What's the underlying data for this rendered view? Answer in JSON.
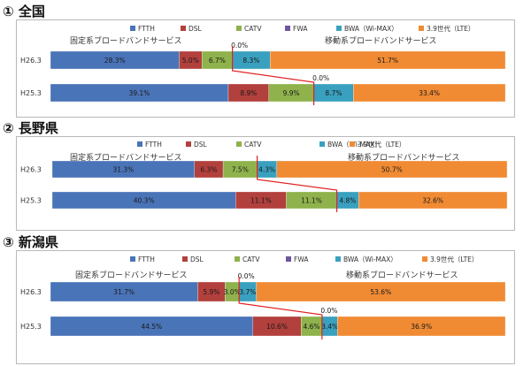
{
  "colors": {
    "FTTH": "#4a74b8",
    "DSL": "#b2403d",
    "CATV": "#8fb24c",
    "FWA": "#6e56a1",
    "BWA": "#3aa0bf",
    "LTE": "#f08b34",
    "connector": "#e02020"
  },
  "chart_data": [
    {
      "type": "bar",
      "orientation": "horizontal",
      "stacked": true,
      "percent": true,
      "title": "① 全国",
      "legend": [
        "FTTH",
        "DSL",
        "CATV",
        "FWA",
        "BWA（Wi-MAX）",
        "3.9世代（LTE）"
      ],
      "group_labels": {
        "fixed": "固定系ブロードバンドサービス",
        "mobile": "移動系ブロードバンドサービス"
      },
      "categories": [
        "H26.3",
        "H25.3"
      ],
      "series": [
        {
          "name": "FTTH",
          "values": [
            28.3,
            39.1
          ],
          "labels": [
            "28.3%",
            "39.1%"
          ]
        },
        {
          "name": "DSL",
          "values": [
            5.0,
            8.9
          ],
          "labels": [
            "5.0%",
            "8.9%"
          ]
        },
        {
          "name": "CATV",
          "values": [
            6.7,
            9.9
          ],
          "labels": [
            "6.7%",
            "9.9%"
          ]
        },
        {
          "name": "FWA",
          "values": [
            0.0,
            0.0
          ],
          "labels": [
            "0.0%",
            "0.0%"
          ]
        },
        {
          "name": "BWA（Wi-MAX）",
          "values": [
            8.3,
            8.7
          ],
          "labels": [
            "8.3%",
            "8.7%"
          ]
        },
        {
          "name": "3.9世代（LTE）",
          "values": [
            51.7,
            33.4
          ],
          "labels": [
            "51.7%",
            "33.4%"
          ]
        }
      ]
    },
    {
      "type": "bar",
      "orientation": "horizontal",
      "stacked": true,
      "percent": true,
      "title": "② 長野県",
      "legend": [
        "FTTH",
        "DSL",
        "CATV",
        "BWA（Wi-MAX）",
        "3.9世代（LTE）"
      ],
      "group_labels": {
        "fixed": "固定系ブロードバンドサービス",
        "mobile": "移動系ブロードバンドサービス"
      },
      "categories": [
        "H26.3",
        "H25.3"
      ],
      "series": [
        {
          "name": "FTTH",
          "values": [
            31.3,
            40.3
          ],
          "labels": [
            "31.3%",
            "40.3%"
          ]
        },
        {
          "name": "DSL",
          "values": [
            6.3,
            11.1
          ],
          "labels": [
            "6.3%",
            "11.1%"
          ]
        },
        {
          "name": "CATV",
          "values": [
            7.5,
            11.1
          ],
          "labels": [
            "7.5%",
            "11.1%"
          ]
        },
        {
          "name": "BWA（Wi-MAX）",
          "values": [
            4.3,
            4.8
          ],
          "labels": [
            "4.3%",
            "4.8%"
          ]
        },
        {
          "name": "3.9世代（LTE）",
          "values": [
            50.7,
            32.6
          ],
          "labels": [
            "50.7%",
            "32.6%"
          ]
        }
      ]
    },
    {
      "type": "bar",
      "orientation": "horizontal",
      "stacked": true,
      "percent": true,
      "title": "③ 新潟県",
      "legend": [
        "FTTH",
        "DSL",
        "CATV",
        "FWA",
        "BWA（Wi-MAX）",
        "3.9世代（LTE）"
      ],
      "group_labels": {
        "fixed": "固定系ブロードバンドサービス",
        "mobile": "移動系ブロードバンドサービス"
      },
      "categories": [
        "H26.3",
        "H25.3"
      ],
      "series": [
        {
          "name": "FTTH",
          "values": [
            31.7,
            44.5
          ],
          "labels": [
            "31.7%",
            "44.5%"
          ]
        },
        {
          "name": "DSL",
          "values": [
            5.9,
            10.6
          ],
          "labels": [
            "5.9%",
            "10.6%"
          ]
        },
        {
          "name": "CATV",
          "values": [
            3.0,
            4.6
          ],
          "labels": [
            "3.0%",
            "4.6%"
          ]
        },
        {
          "name": "FWA",
          "values": [
            0.0,
            0.0
          ],
          "labels": [
            "0.0%",
            "0.0%"
          ]
        },
        {
          "name": "BWA（Wi-MAX）",
          "values": [
            3.7,
            3.4
          ],
          "labels": [
            "3.7%",
            "3.4%"
          ]
        },
        {
          "name": "3.9世代（LTE）",
          "values": [
            53.6,
            36.9
          ],
          "labels": [
            "53.6%",
            "36.9%"
          ]
        }
      ]
    }
  ]
}
